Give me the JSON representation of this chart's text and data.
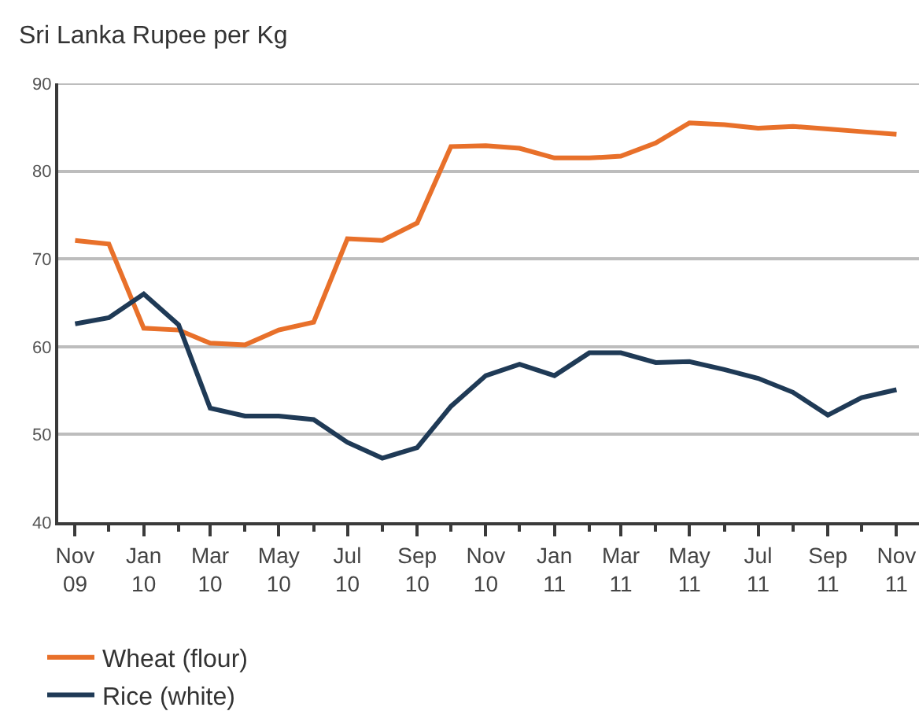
{
  "chart_data": {
    "type": "line",
    "title": "Sri Lanka Rupee per Kg",
    "x": [
      "2009-11",
      "2009-12",
      "2010-01",
      "2010-02",
      "2010-03",
      "2010-04",
      "2010-05",
      "2010-06",
      "2010-07",
      "2010-08",
      "2010-09",
      "2010-10",
      "2010-11",
      "2010-12",
      "2011-01",
      "2011-02",
      "2011-03",
      "2011-04",
      "2011-05",
      "2011-06",
      "2011-07",
      "2011-08",
      "2011-09",
      "2011-10",
      "2011-11"
    ],
    "series": [
      {
        "name": "Wheat (flour)",
        "color": "#e8702a",
        "values": [
          72.1,
          71.7,
          62.1,
          61.9,
          60.4,
          60.2,
          61.9,
          62.8,
          72.3,
          72.1,
          74.1,
          82.8,
          82.9,
          82.6,
          81.5,
          81.5,
          81.7,
          83.2,
          85.5,
          85.3,
          84.9,
          85.1,
          84.8,
          84.5,
          84.2
        ]
      },
      {
        "name": "Rice (white)",
        "color": "#1f3a56",
        "values": [
          62.6,
          63.3,
          66.0,
          62.5,
          53.0,
          52.1,
          52.1,
          51.7,
          49.1,
          47.3,
          48.5,
          53.2,
          56.7,
          58.0,
          56.7,
          59.3,
          59.3,
          58.2,
          58.3,
          57.4,
          56.4,
          54.8,
          52.2,
          54.2,
          55.1
        ]
      }
    ],
    "xlim": [
      "2009-10-17",
      "2011-11-21"
    ],
    "xticks": [
      {
        "value": "2009-11",
        "label": "Nov\n09"
      },
      {
        "value": "2009-12",
        "label": null
      },
      {
        "value": "2010-01",
        "label": "Jan\n10"
      },
      {
        "value": "2010-02",
        "label": null
      },
      {
        "value": "2010-03",
        "label": "Mar\n10"
      },
      {
        "value": "2010-04",
        "label": null
      },
      {
        "value": "2010-05",
        "label": "May\n10"
      },
      {
        "value": "2010-06",
        "label": null
      },
      {
        "value": "2010-07",
        "label": "Jul\n10"
      },
      {
        "value": "2010-08",
        "label": null
      },
      {
        "value": "2010-09",
        "label": "Sep\n10"
      },
      {
        "value": "2010-10",
        "label": null
      },
      {
        "value": "2010-11",
        "label": "Nov\n10"
      },
      {
        "value": "2010-12",
        "label": null
      },
      {
        "value": "2011-01",
        "label": "Jan\n11"
      },
      {
        "value": "2011-02",
        "label": null
      },
      {
        "value": "2011-03",
        "label": "Mar\n11"
      },
      {
        "value": "2011-04",
        "label": null
      },
      {
        "value": "2011-05",
        "label": "May\n11"
      },
      {
        "value": "2011-06",
        "label": null
      },
      {
        "value": "2011-07",
        "label": "Jul\n11"
      },
      {
        "value": "2011-08",
        "label": null
      },
      {
        "value": "2011-09",
        "label": "Sep\n11"
      },
      {
        "value": "2011-10",
        "label": null
      },
      {
        "value": "2011-11",
        "label": "Nov\n11"
      }
    ],
    "ylim": [
      40,
      90
    ],
    "yticks": [
      40,
      50,
      60,
      70,
      80,
      90
    ],
    "grid": "y",
    "legend": "bottom left",
    "marker": "none",
    "line_style": "solid"
  }
}
